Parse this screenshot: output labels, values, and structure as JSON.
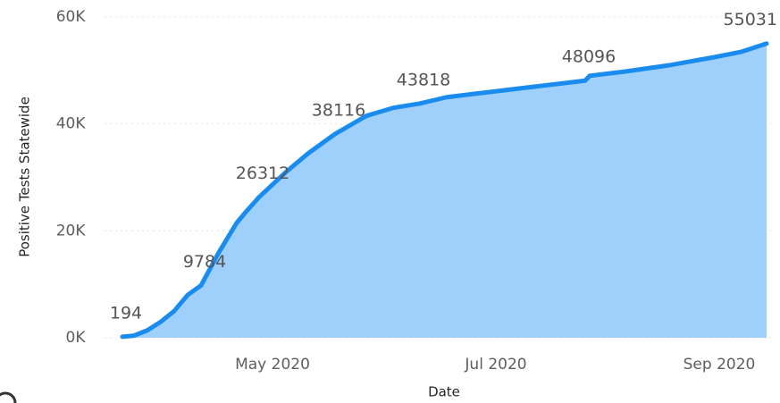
{
  "chart_data": {
    "type": "area",
    "x_label": "Date",
    "y_label": "Positive Tests Statewide",
    "x": [
      3.656,
      3.76,
      3.88,
      4.0,
      4.12,
      4.24,
      4.36,
      4.52,
      4.68,
      4.76,
      4.88,
      5.12,
      5.32,
      5.56,
      5.84,
      6.08,
      6.32,
      6.56,
      6.96,
      7.36,
      7.68,
      7.8,
      7.84,
      8.16,
      8.56,
      8.96,
      9.2,
      9.424
    ],
    "series": [
      {
        "name": "Positive Tests Statewide",
        "color": "#1a8cf0",
        "fill": "#9fd0fb",
        "values": [
          194,
          400,
          1400,
          3000,
          5000,
          8000,
          9784,
          16000,
          21500,
          23500,
          26312,
          31000,
          34500,
          38116,
          41500,
          43000,
          43818,
          45000,
          46000,
          47000,
          47800,
          48096,
          49000,
          49800,
          51000,
          52500,
          53500,
          55031
        ],
        "value_labels": [
          "194",
          null,
          null,
          null,
          null,
          null,
          "9784",
          null,
          null,
          null,
          "26312",
          null,
          null,
          "38116",
          null,
          null,
          "43818",
          null,
          null,
          null,
          null,
          "48096",
          null,
          null,
          null,
          null,
          null,
          "55031"
        ]
      }
    ],
    "xlim": [
      3.5,
      9.5
    ],
    "xticks": [
      {
        "value": 5,
        "label": "May 2020"
      },
      {
        "value": 7,
        "label": "Jul 2020"
      },
      {
        "value": 9,
        "label": "Sep 2020"
      }
    ],
    "ylim": [
      0,
      60000
    ],
    "yticks": [
      {
        "value": 0,
        "label": "0K"
      },
      {
        "value": 20000,
        "label": "20K"
      },
      {
        "value": 40000,
        "label": "40K"
      },
      {
        "value": 60000,
        "label": "60K"
      }
    ],
    "grid": true
  }
}
